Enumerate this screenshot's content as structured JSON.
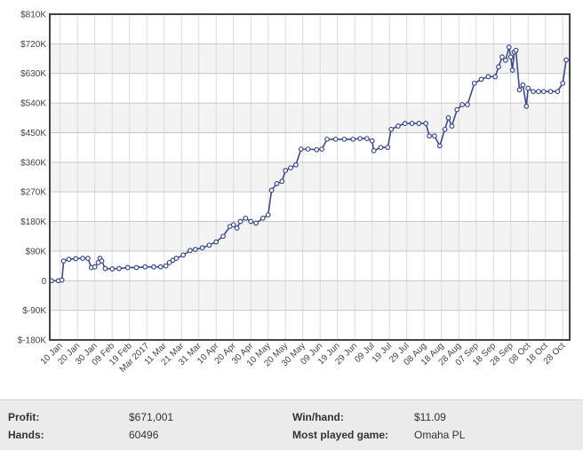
{
  "chart_data": {
    "type": "line",
    "title": "",
    "xlabel": "",
    "ylabel": "",
    "y_ticks": [
      "$810K",
      "$720K",
      "$630K",
      "$540K",
      "$450K",
      "$360K",
      "$270K",
      "$180K",
      "$90K",
      "0",
      "$-90K",
      "$-180K"
    ],
    "y_tick_values": [
      810000,
      720000,
      630000,
      540000,
      450000,
      360000,
      270000,
      180000,
      90000,
      0,
      -90000,
      -180000
    ],
    "ylim": [
      -180000,
      810000
    ],
    "x_ticks": [
      "10 Jan",
      "20 Jan",
      "30 Jan",
      "09 Feb",
      "19 Feb",
      "Mar 2017",
      "11 Mar",
      "21 Mar",
      "31 Mar",
      "10 Apr",
      "20 Apr",
      "30 Apr",
      "10 May",
      "20 May",
      "30 May",
      "09 Jun",
      "19 Jun",
      "29 Jun",
      "09 Jul",
      "19 Jul",
      "29 Jul",
      "08 Aug",
      "18 Aug",
      "28 Aug",
      "07 Sep",
      "18 Sep",
      "28 Sep",
      "08 Oct",
      "18 Oct",
      "28 Oct"
    ],
    "grid": true,
    "line_color": "#3c4a8c",
    "series": [
      {
        "points": [
          [
            "2017-01-05",
            0
          ],
          [
            "2017-01-09",
            0
          ],
          [
            "2017-01-11",
            2000
          ],
          [
            "2017-01-12",
            60000
          ],
          [
            "2017-01-15",
            65000
          ],
          [
            "2017-01-19",
            67000
          ],
          [
            "2017-01-23",
            68000
          ],
          [
            "2017-01-26",
            68000
          ],
          [
            "2017-01-28",
            40000
          ],
          [
            "2017-01-30",
            42000
          ],
          [
            "2017-02-01",
            55000
          ],
          [
            "2017-02-02",
            68000
          ],
          [
            "2017-02-03",
            60000
          ],
          [
            "2017-02-05",
            37000
          ],
          [
            "2017-02-09",
            36000
          ],
          [
            "2017-02-13",
            37000
          ],
          [
            "2017-02-18",
            40000
          ],
          [
            "2017-02-23",
            40000
          ],
          [
            "2017-02-28",
            42000
          ],
          [
            "2017-03-05",
            42000
          ],
          [
            "2017-03-09",
            42000
          ],
          [
            "2017-03-12",
            45000
          ],
          [
            "2017-03-14",
            55000
          ],
          [
            "2017-03-16",
            62000
          ],
          [
            "2017-03-18",
            68000
          ],
          [
            "2017-03-22",
            78000
          ],
          [
            "2017-03-26",
            92000
          ],
          [
            "2017-03-29",
            95000
          ],
          [
            "2017-04-02",
            100000
          ],
          [
            "2017-04-06",
            108000
          ],
          [
            "2017-04-10",
            118000
          ],
          [
            "2017-04-14",
            135000
          ],
          [
            "2017-04-18",
            165000
          ],
          [
            "2017-04-20",
            170000
          ],
          [
            "2017-04-22",
            160000
          ],
          [
            "2017-04-24",
            180000
          ],
          [
            "2017-04-27",
            190000
          ],
          [
            "2017-04-30",
            180000
          ],
          [
            "2017-05-03",
            175000
          ],
          [
            "2017-05-07",
            190000
          ],
          [
            "2017-05-10",
            200000
          ],
          [
            "2017-05-12",
            275000
          ],
          [
            "2017-05-15",
            295000
          ],
          [
            "2017-05-18",
            302000
          ],
          [
            "2017-05-20",
            335000
          ],
          [
            "2017-05-23",
            343000
          ],
          [
            "2017-05-26",
            352000
          ],
          [
            "2017-05-29",
            400000
          ],
          [
            "2017-06-02",
            400000
          ],
          [
            "2017-06-07",
            398000
          ],
          [
            "2017-06-10",
            400000
          ],
          [
            "2017-06-13",
            430000
          ],
          [
            "2017-06-18",
            430000
          ],
          [
            "2017-06-23",
            430000
          ],
          [
            "2017-06-28",
            430000
          ],
          [
            "2017-07-02",
            432000
          ],
          [
            "2017-07-06",
            432000
          ],
          [
            "2017-07-09",
            425000
          ],
          [
            "2017-07-10",
            395000
          ],
          [
            "2017-07-14",
            405000
          ],
          [
            "2017-07-18",
            405000
          ],
          [
            "2017-07-20",
            460000
          ],
          [
            "2017-07-24",
            470000
          ],
          [
            "2017-07-28",
            478000
          ],
          [
            "2017-08-01",
            478000
          ],
          [
            "2017-08-05",
            478000
          ],
          [
            "2017-08-09",
            478000
          ],
          [
            "2017-08-11",
            440000
          ],
          [
            "2017-08-14",
            440000
          ],
          [
            "2017-08-17",
            410000
          ],
          [
            "2017-08-20",
            460000
          ],
          [
            "2017-08-22",
            495000
          ],
          [
            "2017-08-24",
            470000
          ],
          [
            "2017-08-27",
            520000
          ],
          [
            "2017-08-30",
            535000
          ],
          [
            "2017-09-02",
            535000
          ],
          [
            "2017-09-06",
            600000
          ],
          [
            "2017-09-10",
            612000
          ],
          [
            "2017-09-14",
            620000
          ],
          [
            "2017-09-18",
            620000
          ],
          [
            "2017-09-20",
            650000
          ],
          [
            "2017-09-22",
            680000
          ],
          [
            "2017-09-24",
            670000
          ],
          [
            "2017-09-26",
            710000
          ],
          [
            "2017-09-27",
            680000
          ],
          [
            "2017-09-28",
            640000
          ],
          [
            "2017-09-29",
            695000
          ],
          [
            "2017-09-30",
            700000
          ],
          [
            "2017-10-02",
            580000
          ],
          [
            "2017-10-04",
            595000
          ],
          [
            "2017-10-06",
            530000
          ],
          [
            "2017-10-07",
            585000
          ],
          [
            "2017-10-10",
            575000
          ],
          [
            "2017-10-13",
            575000
          ],
          [
            "2017-10-16",
            575000
          ],
          [
            "2017-10-20",
            575000
          ],
          [
            "2017-10-24",
            575000
          ],
          [
            "2017-10-27",
            600000
          ],
          [
            "2017-10-29",
            671001
          ]
        ]
      }
    ]
  },
  "stats": {
    "profit_label": "Profit:",
    "profit_value": "$671,001",
    "hands_label": "Hands:",
    "hands_value": "60496",
    "winhand_label": "Win/hand:",
    "winhand_value": "$11.09",
    "game_label": "Most played game:",
    "game_value": "Omaha PL"
  }
}
